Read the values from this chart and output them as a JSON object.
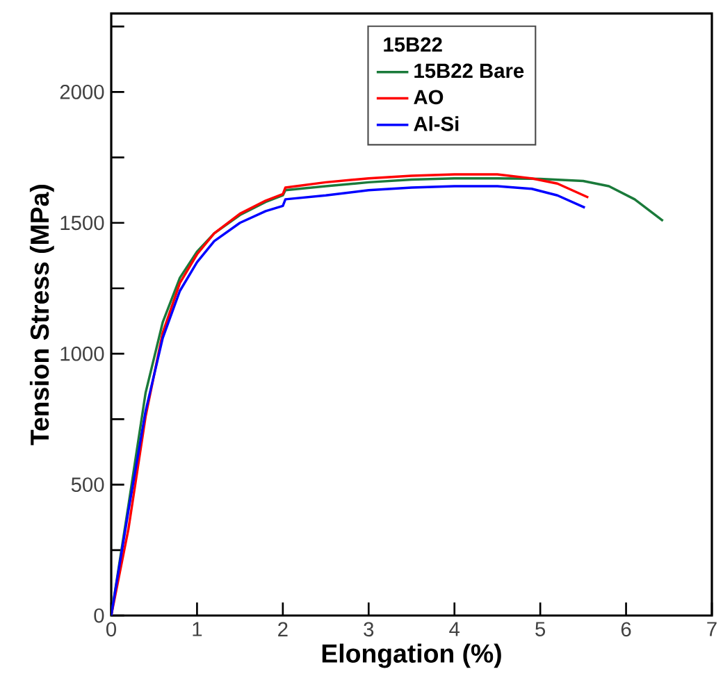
{
  "chart_data": {
    "type": "line",
    "xlabel": "Elongation (%)",
    "ylabel": "Tension Stress (MPa)",
    "legend_title": "15B22",
    "xlim": [
      0,
      7
    ],
    "xticks": [
      0,
      1,
      2,
      3,
      4,
      5,
      6,
      7
    ],
    "ylim": [
      0,
      2300
    ],
    "yticks": [
      0,
      {
        "value": 250,
        "label": null
      },
      500,
      {
        "value": 750,
        "label": null
      },
      1000,
      {
        "value": 1250,
        "label": null
      },
      1500,
      {
        "value": 1750,
        "label": null
      },
      2000,
      {
        "value": 2250,
        "label": null
      }
    ],
    "grid": false,
    "legend": "top",
    "marker": "none",
    "line_style": "solid",
    "series": [
      {
        "name": "15B22 Bare",
        "color": "#1a7a3a",
        "x": [
          0,
          0.2,
          0.4,
          0.6,
          0.8,
          1.0,
          1.2,
          1.5,
          1.8,
          2.0,
          2.03,
          2.5,
          3,
          3.5,
          4,
          4.5,
          5,
          5.5,
          5.8,
          6.1,
          6.43
        ],
        "values": [
          0,
          420,
          850,
          1120,
          1290,
          1390,
          1460,
          1530,
          1580,
          1605,
          1625,
          1640,
          1655,
          1665,
          1670,
          1670,
          1668,
          1660,
          1640,
          1590,
          1508
        ]
      },
      {
        "name": "AO",
        "color": "#ff0000",
        "x": [
          0,
          0.2,
          0.4,
          0.6,
          0.8,
          1.0,
          1.2,
          1.5,
          1.8,
          2.0,
          2.03,
          2.5,
          3,
          3.5,
          4,
          4.5,
          4.9,
          5.2,
          5.56
        ],
        "values": [
          0,
          330,
          760,
          1080,
          1270,
          1380,
          1460,
          1535,
          1585,
          1610,
          1635,
          1655,
          1670,
          1680,
          1685,
          1685,
          1670,
          1650,
          1597
        ]
      },
      {
        "name": "Al-Si",
        "color": "#0000ff",
        "x": [
          0,
          0.2,
          0.4,
          0.6,
          0.8,
          1.0,
          1.2,
          1.5,
          1.8,
          2.0,
          2.03,
          2.5,
          3,
          3.5,
          4,
          4.5,
          4.9,
          5.2,
          5.52
        ],
        "values": [
          0,
          400,
          780,
          1060,
          1240,
          1350,
          1430,
          1500,
          1545,
          1565,
          1590,
          1605,
          1625,
          1635,
          1640,
          1640,
          1630,
          1605,
          1558
        ]
      }
    ]
  }
}
